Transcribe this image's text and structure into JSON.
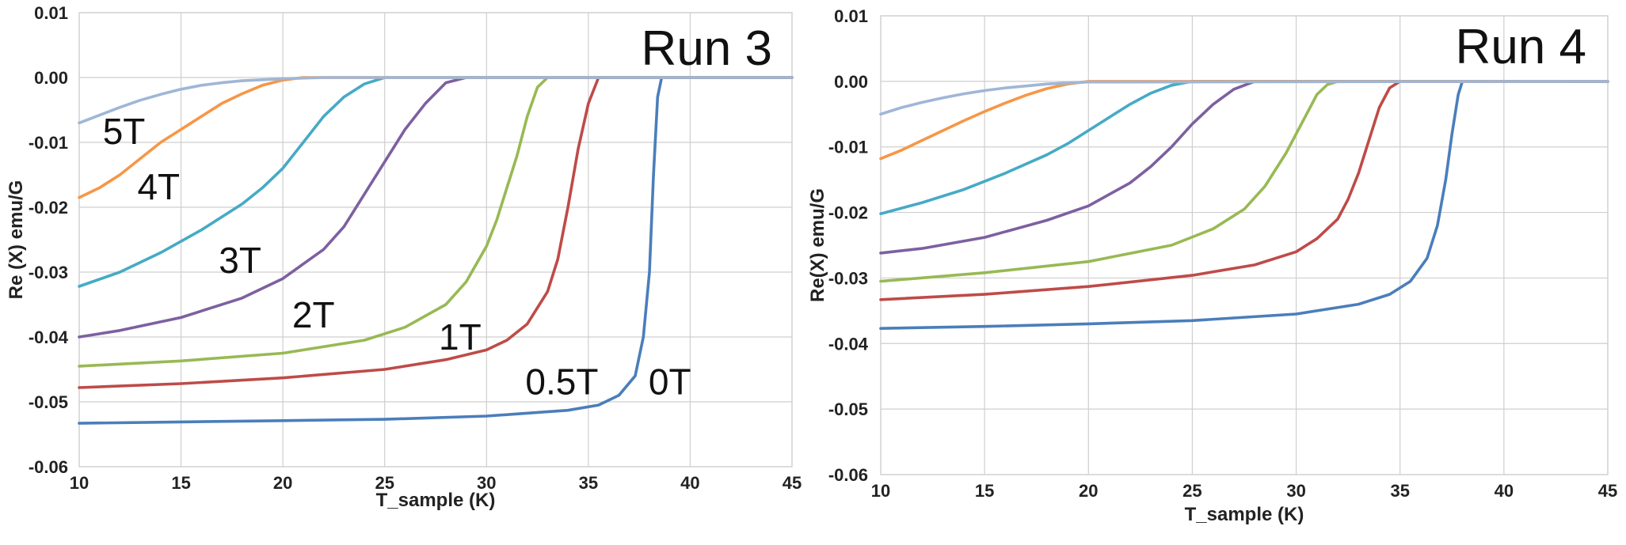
{
  "chart_data": [
    {
      "type": "line",
      "title": "Run 3",
      "xlabel": "T_sample (K)",
      "ylabel": "Re (X)  emu/G",
      "xlim": [
        10,
        45
      ],
      "ylim": [
        -0.06,
        0.01
      ],
      "xticks": [
        "10",
        "15",
        "20",
        "25",
        "30",
        "35",
        "40",
        "45"
      ],
      "yticks": [
        "0.01",
        "0.00",
        "-0.01",
        "-0.02",
        "-0.03",
        "-0.04",
        "-0.05",
        "-0.06"
      ],
      "grid": true,
      "colors": [
        "#4a7ebb",
        "#be4b48",
        "#98b954",
        "#7d60a0",
        "#46aac5",
        "#f79646",
        "#9fb6d7"
      ],
      "series": [
        {
          "name": "0T",
          "x": [
            10,
            15,
            20,
            25,
            30,
            34,
            35.5,
            36.5,
            37.3,
            37.7,
            38.0,
            38.2,
            38.4,
            38.6,
            45
          ],
          "y": [
            -0.0533,
            -0.0531,
            -0.0529,
            -0.0527,
            -0.0522,
            -0.0513,
            -0.0505,
            -0.049,
            -0.046,
            -0.04,
            -0.03,
            -0.015,
            -0.003,
            0.0,
            0.0
          ]
        },
        {
          "name": "0.5T",
          "x": [
            10,
            15,
            20,
            25,
            28,
            30,
            31,
            32,
            33,
            33.5,
            34,
            34.5,
            35,
            35.5,
            45
          ],
          "y": [
            -0.0478,
            -0.0472,
            -0.0463,
            -0.045,
            -0.0435,
            -0.042,
            -0.0405,
            -0.038,
            -0.033,
            -0.028,
            -0.02,
            -0.011,
            -0.004,
            0.0,
            0.0
          ]
        },
        {
          "name": "1T",
          "x": [
            10,
            15,
            20,
            24,
            26,
            28,
            29,
            30,
            30.5,
            31,
            31.5,
            32,
            32.5,
            33,
            45
          ],
          "y": [
            -0.0445,
            -0.0437,
            -0.0425,
            -0.0405,
            -0.0385,
            -0.035,
            -0.0315,
            -0.026,
            -0.022,
            -0.017,
            -0.012,
            -0.006,
            -0.0015,
            0.0,
            0.0
          ]
        },
        {
          "name": "2T",
          "x": [
            10,
            12,
            15,
            18,
            20,
            22,
            23,
            24,
            25,
            26,
            27,
            28,
            29,
            45
          ],
          "y": [
            -0.04,
            -0.039,
            -0.037,
            -0.034,
            -0.031,
            -0.0265,
            -0.023,
            -0.018,
            -0.013,
            -0.008,
            -0.004,
            -0.0008,
            0.0,
            0.0
          ]
        },
        {
          "name": "3T",
          "x": [
            10,
            12,
            14,
            16,
            18,
            19,
            20,
            21,
            22,
            23,
            24,
            25,
            45
          ],
          "y": [
            -0.0322,
            -0.03,
            -0.027,
            -0.0235,
            -0.0195,
            -0.017,
            -0.014,
            -0.01,
            -0.006,
            -0.003,
            -0.001,
            0.0,
            0.0
          ]
        },
        {
          "name": "4T",
          "x": [
            10,
            11,
            12,
            13,
            14,
            15,
            16,
            17,
            18,
            19,
            20,
            21,
            45
          ],
          "y": [
            -0.0185,
            -0.017,
            -0.015,
            -0.0125,
            -0.01,
            -0.008,
            -0.006,
            -0.004,
            -0.0025,
            -0.0012,
            -0.0004,
            0.0,
            0.0
          ]
        },
        {
          "name": "5T",
          "x": [
            10,
            11,
            12,
            13,
            14,
            15,
            16,
            17,
            18,
            20,
            22,
            45
          ],
          "y": [
            -0.007,
            -0.0058,
            -0.0046,
            -0.0035,
            -0.0026,
            -0.0018,
            -0.0012,
            -0.0008,
            -0.0005,
            -0.0002,
            0.0,
            0.0
          ]
        }
      ],
      "curve_labels": [
        {
          "text": "5T",
          "x": 12.2,
          "y": -0.0083
        },
        {
          "text": "4T",
          "x": 13.9,
          "y": -0.0168
        },
        {
          "text": "3T",
          "x": 17.9,
          "y": -0.0282
        },
        {
          "text": "2T",
          "x": 21.5,
          "y": -0.0366
        },
        {
          "text": "1T",
          "x": 28.7,
          "y": -0.04
        },
        {
          "text": "0.5T",
          "x": 33.7,
          "y": -0.0469
        },
        {
          "text": "0T",
          "x": 39.0,
          "y": -0.0469
        }
      ]
    },
    {
      "type": "line",
      "title": "Run 4",
      "xlabel": "T_sample (K)",
      "ylabel": "Re(X) emu/G",
      "xlim": [
        10,
        45
      ],
      "ylim": [
        -0.06,
        0.01
      ],
      "xticks": [
        "10",
        "15",
        "20",
        "25",
        "30",
        "35",
        "40",
        "45"
      ],
      "yticks": [
        "0.01",
        "0.00",
        "-0.01",
        "-0.02",
        "-0.03",
        "-0.04",
        "-0.05",
        "-0.06"
      ],
      "grid": true,
      "colors": [
        "#4a7ebb",
        "#be4b48",
        "#98b954",
        "#7d60a0",
        "#46aac5",
        "#f79646",
        "#9fb6d7"
      ],
      "series": [
        {
          "name": "0T",
          "x": [
            10,
            15,
            20,
            25,
            30,
            33,
            34.5,
            35.5,
            36.3,
            36.8,
            37.2,
            37.5,
            37.8,
            38.0,
            45
          ],
          "y": [
            -0.0377,
            -0.0374,
            -0.037,
            -0.0365,
            -0.0355,
            -0.034,
            -0.0325,
            -0.0305,
            -0.027,
            -0.022,
            -0.015,
            -0.008,
            -0.002,
            0.0,
            0.0
          ]
        },
        {
          "name": "0.5T",
          "x": [
            10,
            15,
            20,
            25,
            28,
            30,
            31,
            32,
            32.5,
            33,
            33.5,
            34,
            34.5,
            35,
            45
          ],
          "y": [
            -0.0333,
            -0.0325,
            -0.0313,
            -0.0296,
            -0.028,
            -0.026,
            -0.024,
            -0.021,
            -0.018,
            -0.014,
            -0.009,
            -0.004,
            -0.001,
            0.0,
            0.0
          ]
        },
        {
          "name": "1T",
          "x": [
            10,
            15,
            20,
            24,
            26,
            27.5,
            28.5,
            29.5,
            30,
            30.5,
            31,
            31.5,
            32,
            45
          ],
          "y": [
            -0.0305,
            -0.0292,
            -0.0275,
            -0.025,
            -0.0225,
            -0.0195,
            -0.016,
            -0.011,
            -0.008,
            -0.005,
            -0.002,
            -0.0005,
            0.0,
            0.0
          ]
        },
        {
          "name": "2T",
          "x": [
            10,
            12,
            15,
            18,
            20,
            22,
            23,
            24,
            25,
            26,
            27,
            28,
            45
          ],
          "y": [
            -0.0262,
            -0.0255,
            -0.0238,
            -0.0212,
            -0.019,
            -0.0155,
            -0.013,
            -0.01,
            -0.0065,
            -0.0035,
            -0.0012,
            0.0,
            0.0
          ]
        },
        {
          "name": "3T",
          "x": [
            10,
            12,
            14,
            16,
            18,
            19,
            20,
            21,
            22,
            23,
            24,
            25,
            45
          ],
          "y": [
            -0.0202,
            -0.0185,
            -0.0165,
            -0.014,
            -0.0112,
            -0.0095,
            -0.0075,
            -0.0055,
            -0.0035,
            -0.0018,
            -0.0006,
            0.0,
            0.0
          ]
        },
        {
          "name": "4T",
          "x": [
            10,
            11,
            12,
            13,
            14,
            15,
            16,
            17,
            18,
            19,
            20,
            45
          ],
          "y": [
            -0.0118,
            -0.0105,
            -0.009,
            -0.0075,
            -0.006,
            -0.0046,
            -0.0033,
            -0.0021,
            -0.0011,
            -0.0004,
            0.0,
            0.0
          ]
        },
        {
          "name": "5T",
          "x": [
            10,
            11,
            12,
            13,
            14,
            15,
            16,
            17,
            18,
            20,
            45
          ],
          "y": [
            -0.005,
            -0.004,
            -0.0032,
            -0.0025,
            -0.0019,
            -0.0014,
            -0.001,
            -0.0007,
            -0.0004,
            -0.0001,
            0.0
          ]
        }
      ],
      "curve_labels": []
    }
  ]
}
